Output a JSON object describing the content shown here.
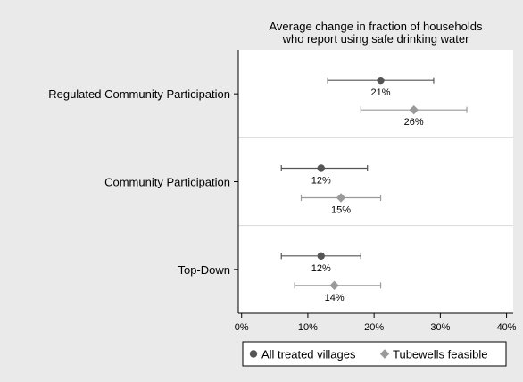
{
  "chart_data": {
    "type": "scatter",
    "title_lines": [
      "Average change in fraction of households",
      "who report using safe drinking water"
    ],
    "categories": [
      "Regulated Community Participation",
      "Community Participation",
      "Top-Down"
    ],
    "x_ticks": [
      0,
      10,
      20,
      30,
      40
    ],
    "x_tick_labels": [
      "0%",
      "10%",
      "20%",
      "30%",
      "40%"
    ],
    "xlim": [
      -0.5,
      41
    ],
    "grid": "horizontal separators between groups",
    "legend_position": "bottom",
    "series": [
      {
        "name": "All treated villages",
        "marker": "circle",
        "color": "#555555",
        "points": [
          {
            "category": "Regulated Community Participation",
            "value": 21,
            "ci_low": 13,
            "ci_high": 29,
            "label": "21%"
          },
          {
            "category": "Community Participation",
            "value": 12,
            "ci_low": 6,
            "ci_high": 19,
            "label": "12%"
          },
          {
            "category": "Top-Down",
            "value": 12,
            "ci_low": 6,
            "ci_high": 18,
            "label": "12%"
          }
        ]
      },
      {
        "name": "Tubewells feasible",
        "marker": "diamond",
        "color": "#9a9a9a",
        "points": [
          {
            "category": "Regulated Community Participation",
            "value": 26,
            "ci_low": 18,
            "ci_high": 34,
            "label": "26%"
          },
          {
            "category": "Community Participation",
            "value": 15,
            "ci_low": 9,
            "ci_high": 21,
            "label": "15%"
          },
          {
            "category": "Top-Down",
            "value": 14,
            "ci_low": 8,
            "ci_high": 21,
            "label": "14%"
          }
        ]
      }
    ]
  }
}
